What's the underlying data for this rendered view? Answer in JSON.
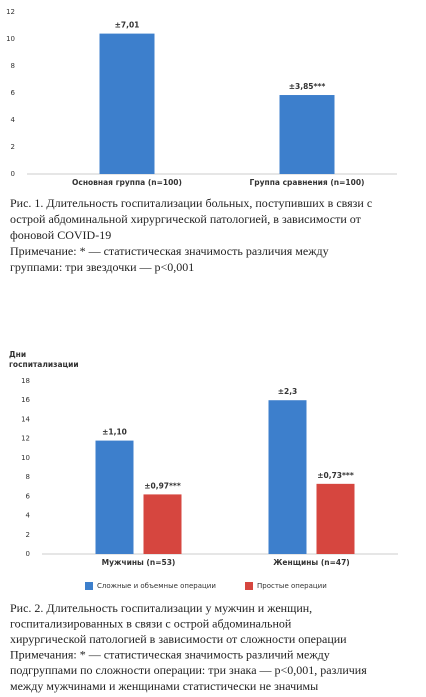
{
  "chart_data": [
    {
      "type": "bar",
      "categories": [
        "Основная группа (n=100)",
        "Группа сравнения (n=100)"
      ],
      "values": [
        10.4,
        5.85
      ],
      "color": "#3d7fcc",
      "error_labels": [
        "±7,01",
        "±3,85***"
      ],
      "ylim": [
        0,
        12
      ],
      "yticks": [
        0,
        2,
        4,
        6,
        8,
        10,
        12
      ],
      "grid": false,
      "caption": [
        "Рис. 1. Длительность госпитализации больных, поступивших в связи с",
        "острой абдоминальной хирургической патологией, в зависимости от",
        "фоновой COVID-19",
        "Примечание: * — статистическая значимость различия между",
        "группами: три звездочки — p<0,001"
      ]
    },
    {
      "type": "grouped_bar",
      "y_label": [
        "Дни",
        "госпитализации"
      ],
      "categories": [
        "Мужчины (n=53)",
        "Женщины (n=47)"
      ],
      "series": [
        {
          "name": "Сложные и объемные операции",
          "color": "#3d7fcc",
          "values": [
            11.8,
            16
          ],
          "error_labels": [
            "±1,10",
            "±2,3"
          ]
        },
        {
          "name": "Простые операции",
          "color": "#d6463f",
          "values": [
            6.2,
            7.3
          ],
          "error_labels": [
            "±0,97***",
            "±0,73***"
          ]
        }
      ],
      "ylim": [
        0,
        18
      ],
      "yticks": [
        0,
        2,
        4,
        6,
        8,
        10,
        12,
        14,
        16,
        18
      ],
      "grid": false,
      "legend": "bottom",
      "caption": [
        "Рис. 2. Длительность госпитализации у мужчин и женщин,",
        "госпитализированных в связи с острой абдоминальной",
        "хирургической патологией в зависимости от сложности операции",
        "Примечания: * — статистическая значимость различий между",
        "подгруппами по сложности операции: три знака — p<0,001, различия",
        "между мужчинами и женщинами статистически не значимы"
      ]
    }
  ]
}
